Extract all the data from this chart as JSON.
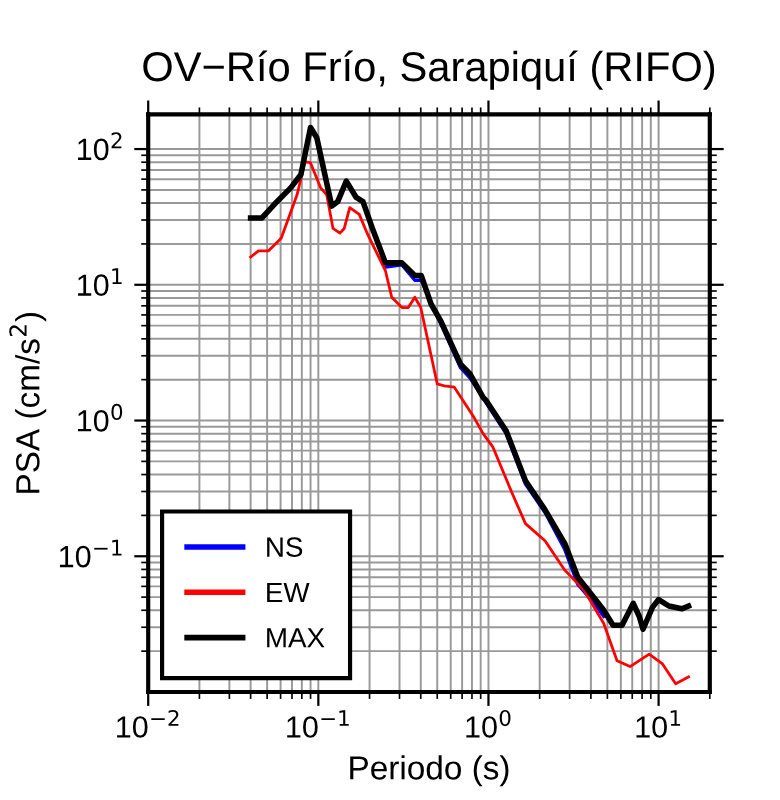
{
  "chart_data": {
    "type": "line",
    "title": "OV−Río Frío, Sarapiquí (RIFO)",
    "xlabel": "Periodo (s)",
    "ylabel": "PSA (cm/s$^{2}$)",
    "log": "xy",
    "grid": true,
    "legend": "bottom left",
    "line_style": "solid",
    "marker": "none",
    "xlim": [
      0.01,
      20
    ],
    "ylim": [
      0.01,
      180
    ],
    "xticks": [
      {
        "value": 0.01,
        "label": "10$^{−2}$"
      },
      {
        "value": 0.1,
        "label": "10$^{−1}$"
      },
      {
        "value": 1,
        "label": "10$^{0}$"
      },
      {
        "value": 10,
        "label": "10$^{1}$"
      }
    ],
    "yticks": [
      {
        "value": 0.1,
        "label": "10$^{−1}$"
      },
      {
        "value": 1,
        "label": "10$^{0}$"
      },
      {
        "value": 10,
        "label": "10$^{1}$"
      },
      {
        "value": 100,
        "label": "10$^{2}$"
      }
    ],
    "series": [
      {
        "name": "NS",
        "color": "#0000ff",
        "x": [
          0.248,
          0.31,
          0.369,
          0.403,
          0.685,
          0.78,
          1.27,
          1.65,
          2.15,
          2.81,
          3.35,
          4.0,
          4.76
        ],
        "values": [
          13.5,
          14.0,
          10.8,
          10.8,
          2.45,
          2.05,
          0.8,
          0.34,
          0.21,
          0.112,
          0.062,
          0.048,
          0.036
        ]
      },
      {
        "name": "EW",
        "color": "#ff0000",
        "x": [
          0.04,
          0.0445,
          0.051,
          0.0605,
          0.075,
          0.0835,
          0.09,
          0.103,
          0.112,
          0.122,
          0.134,
          0.142,
          0.153,
          0.174,
          0.195,
          0.248,
          0.27,
          0.31,
          0.338,
          0.369,
          0.4,
          0.5,
          0.55,
          0.63,
          0.82,
          0.93,
          1.06,
          1.38,
          1.65,
          2.15,
          2.81,
          3.66,
          4.76,
          5.7,
          6.8,
          8.8,
          10.5,
          12.6,
          15
        ],
        "values": [
          16,
          17.8,
          17.8,
          22,
          46,
          81,
          79,
          52,
          46,
          26,
          24,
          26,
          37,
          33,
          23.5,
          12.7,
          8.1,
          6.8,
          6.8,
          8.1,
          6.8,
          1.86,
          1.8,
          1.76,
          1.06,
          0.8,
          0.64,
          0.29,
          0.174,
          0.13,
          0.079,
          0.056,
          0.032,
          0.017,
          0.0154,
          0.019,
          0.0162,
          0.0115,
          0.0129
        ]
      },
      {
        "name": "MAX",
        "color": "#000000",
        "x": [
          0.04,
          0.0465,
          0.055,
          0.069,
          0.079,
          0.09,
          0.098,
          0.107,
          0.12,
          0.13,
          0.146,
          0.167,
          0.183,
          0.208,
          0.248,
          0.31,
          0.369,
          0.403,
          0.46,
          0.525,
          0.685,
          0.78,
          0.93,
          0.97,
          1.27,
          1.65,
          2.15,
          2.81,
          3.35,
          4.0,
          4.76,
          5.4,
          6.1,
          7.1,
          7.7,
          8.1,
          9.2,
          10.0,
          11.5,
          13.7,
          15
        ],
        "values": [
          31,
          31,
          39,
          52,
          65,
          144,
          121,
          73,
          38,
          41,
          58,
          44,
          41,
          26,
          14.5,
          14.5,
          11.7,
          11.7,
          7.2,
          5.4,
          2.6,
          2.2,
          1.48,
          1.4,
          0.84,
          0.36,
          0.22,
          0.124,
          0.07,
          0.053,
          0.04,
          0.031,
          0.031,
          0.045,
          0.036,
          0.029,
          0.042,
          0.048,
          0.043,
          0.041,
          0.043
        ]
      }
    ]
  }
}
